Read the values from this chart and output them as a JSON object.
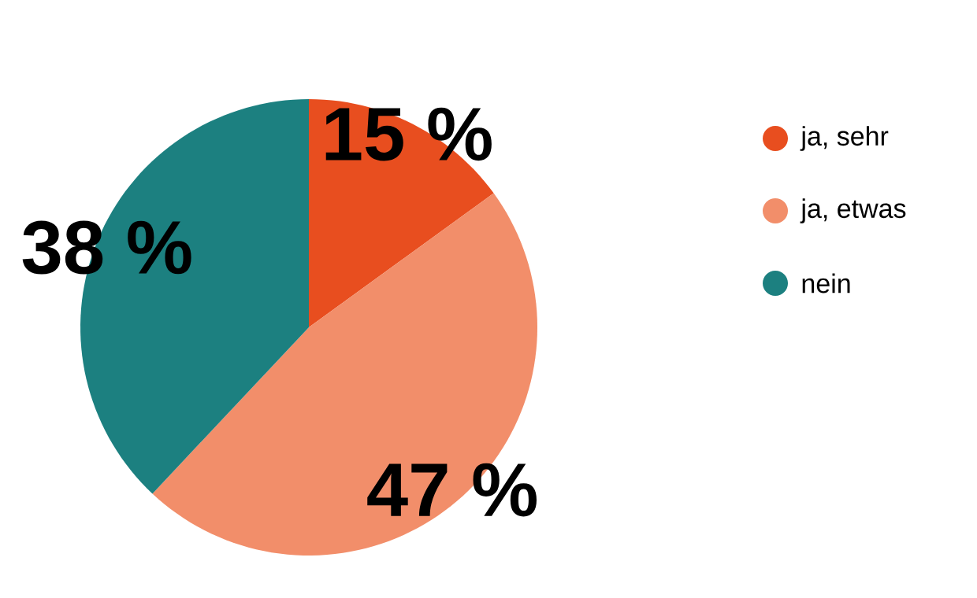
{
  "chart_data": {
    "type": "pie",
    "categories": [
      "ja, sehr",
      "ja, etwas",
      "nein"
    ],
    "values": [
      15,
      47,
      38
    ],
    "colors": [
      "#e84e1f",
      "#f28e6a",
      "#1c8080"
    ],
    "value_labels": [
      "15 %",
      "47 %",
      "38 %"
    ],
    "legend": "right"
  }
}
